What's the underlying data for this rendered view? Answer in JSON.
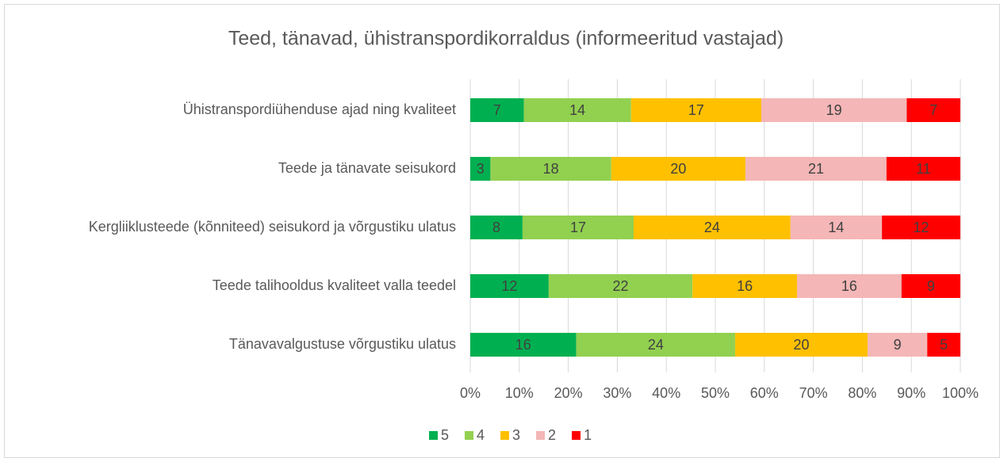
{
  "chart_data": {
    "type": "bar",
    "orientation": "horizontal",
    "stacking": "percent",
    "title": "Teed, tänavad, ühistranspordikorraldus (informeeritud vastajad)",
    "categories": [
      "Ühistranspordiühenduse ajad ning kvaliteet",
      "Teede ja tänavate seisukord",
      "Kergliiklusteede (kõnniteed) seisukord ja võrgustiku ulatus",
      "Teede talihooldus kvaliteet valla teedel",
      "Tänavavalgustuse võrgustiku ulatus"
    ],
    "series": [
      {
        "name": "5",
        "color": "#00b050",
        "values": [
          7,
          3,
          8,
          12,
          16
        ]
      },
      {
        "name": "4",
        "color": "#92d050",
        "values": [
          14,
          18,
          17,
          22,
          24
        ]
      },
      {
        "name": "3",
        "color": "#ffc000",
        "values": [
          17,
          20,
          24,
          16,
          20
        ]
      },
      {
        "name": "2",
        "color": "#f4b6b6",
        "values": [
          19,
          21,
          14,
          16,
          9
        ]
      },
      {
        "name": "1",
        "color": "#ff0000",
        "values": [
          7,
          11,
          12,
          9,
          5
        ]
      }
    ],
    "xlim": [
      0,
      100
    ],
    "xticks": [
      {
        "value": 0,
        "label": "0%"
      },
      {
        "value": 10,
        "label": "10%"
      },
      {
        "value": 20,
        "label": "20%"
      },
      {
        "value": 30,
        "label": "30%"
      },
      {
        "value": 40,
        "label": "40%"
      },
      {
        "value": 50,
        "label": "50%"
      },
      {
        "value": 60,
        "label": "60%"
      },
      {
        "value": 70,
        "label": "70%"
      },
      {
        "value": 80,
        "label": "80%"
      },
      {
        "value": 90,
        "label": "90%"
      },
      {
        "value": 100,
        "label": "100%"
      }
    ],
    "grid": true,
    "legend": "bottom"
  }
}
